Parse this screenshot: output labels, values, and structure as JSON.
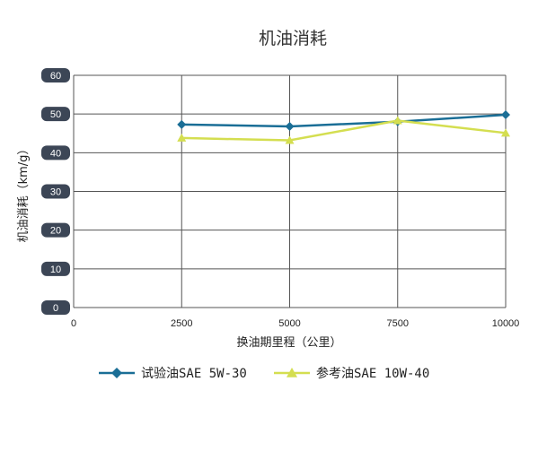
{
  "chart_data": {
    "type": "line",
    "title": "机油消耗",
    "xlabel": "换油期里程（公里）",
    "ylabel": "机油消耗（km/g）",
    "x": [
      2500,
      5000,
      7500,
      10000
    ],
    "xticks": [
      "0",
      "2500",
      "5000",
      "7500",
      "10000"
    ],
    "xlim": [
      0,
      10000
    ],
    "ylim": [
      0,
      60
    ],
    "yticks": [
      "0",
      "10",
      "20",
      "30",
      "40",
      "50",
      "60"
    ],
    "grid": true,
    "legend": "bottom",
    "series": [
      {
        "name": "试验油SAE 5W-30",
        "values": [
          47.3,
          46.8,
          48.0,
          49.8
        ],
        "color": "#1a6e96",
        "marker": "diamond"
      },
      {
        "name": "参考油SAE 10W-40",
        "values": [
          43.8,
          43.2,
          48.3,
          45.1
        ],
        "color": "#d4de50",
        "marker": "triangle"
      }
    ]
  }
}
